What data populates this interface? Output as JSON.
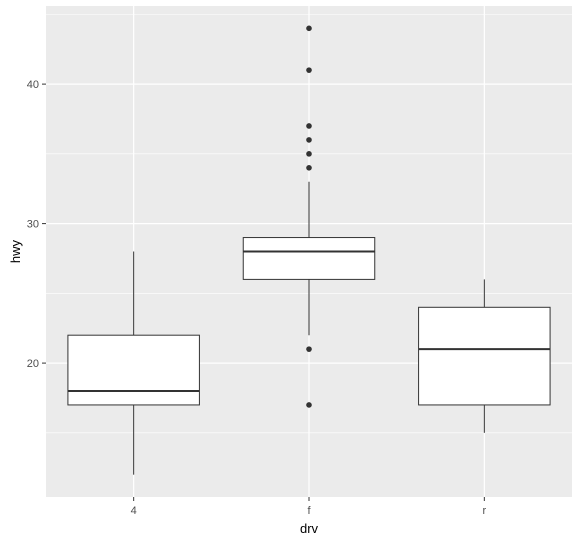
{
  "chart_data": {
    "type": "boxplot",
    "xlabel": "drv",
    "ylabel": "hwy",
    "categories": [
      "4",
      "f",
      "r"
    ],
    "ylim": [
      10.4,
      45.6
    ],
    "y_ticks": [
      20,
      30,
      40
    ],
    "grid": true,
    "colors": {
      "panel": "#ebebeb",
      "grid_major": "#ffffff",
      "box_fill": "#ffffff",
      "box_line": "#333333",
      "outlier": "#333333"
    },
    "series": [
      {
        "category": "4",
        "lower_whisker": 12,
        "q1": 17,
        "median": 18,
        "q3": 22,
        "upper_whisker": 28,
        "outliers": []
      },
      {
        "category": "f",
        "lower_whisker": 22,
        "q1": 26,
        "median": 28,
        "q3": 29,
        "upper_whisker": 33,
        "outliers": [
          17,
          21,
          34,
          35,
          36,
          37,
          41,
          44
        ]
      },
      {
        "category": "r",
        "lower_whisker": 15,
        "q1": 17,
        "median": 21,
        "q3": 24,
        "upper_whisker": 26,
        "outliers": []
      }
    ]
  }
}
